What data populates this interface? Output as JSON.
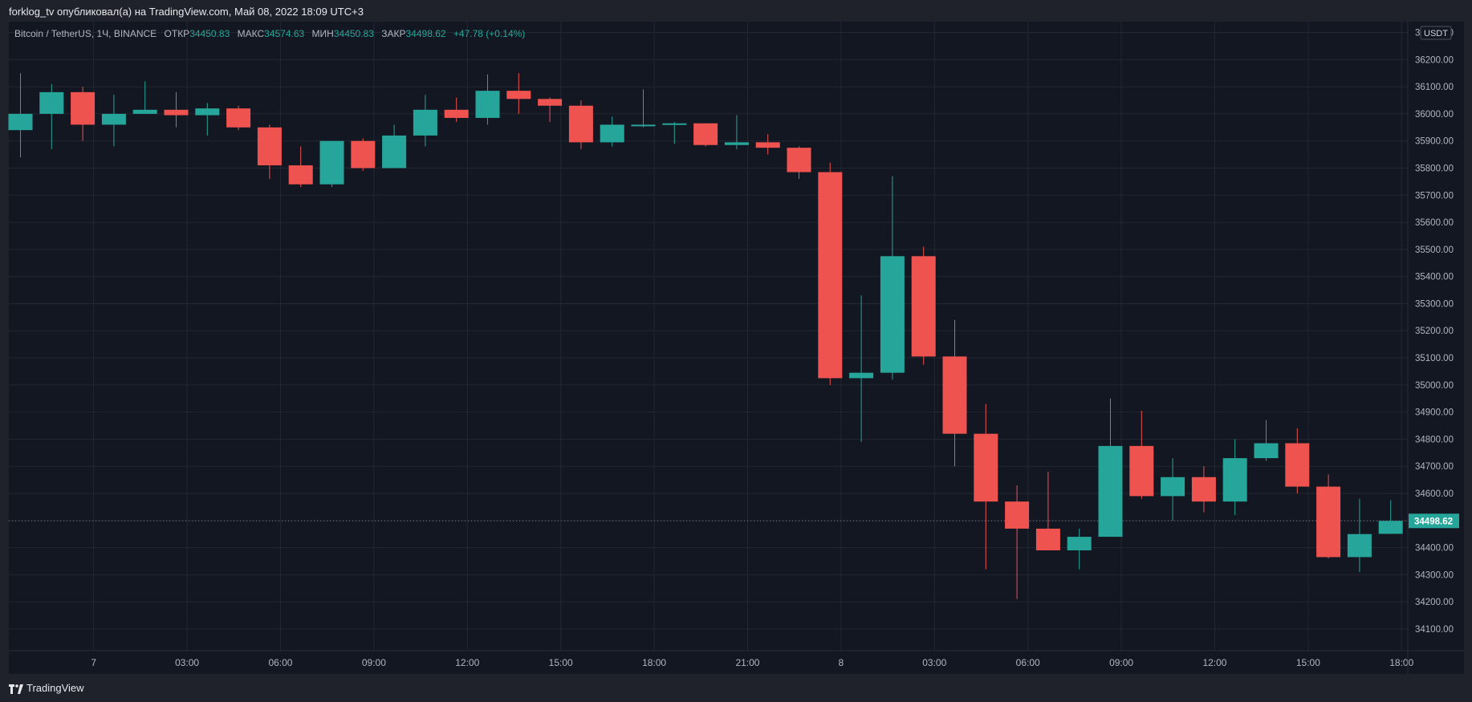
{
  "header": {
    "published_text": "forklog_tv опубликовал(а) на TradingView.com, Май 08, 2022 18:09 UTC+3"
  },
  "legend": {
    "symbol": "Bitcoin / TetherUS, 1Ч, BINANCE",
    "open_label": "ОТКР",
    "open_value": "34450.83",
    "high_label": "МАКС",
    "high_value": "34574.63",
    "low_label": "МИН",
    "low_value": "34450.83",
    "close_label": "ЗАКР",
    "close_value": "34498.62",
    "change": "+47.78 (+0.14%)"
  },
  "footer": {
    "brand": "TradingView"
  },
  "colors": {
    "up": "#26a69a",
    "down": "#ef5350",
    "background": "#131722",
    "grid": "#242733",
    "axis_text": "#b2b5be"
  },
  "chart_data": {
    "type": "candlestick",
    "currency_label": "USDT",
    "last_price_label": "34498.62",
    "last_price": 34498.62,
    "ylim": [
      34020,
      36340
    ],
    "y_ticks": [
      34100,
      34200,
      34300,
      34400,
      34500,
      34600,
      34700,
      34800,
      34900,
      35000,
      35100,
      35200,
      35300,
      35400,
      35500,
      35600,
      35700,
      35800,
      35900,
      36000,
      36100,
      36200,
      36300
    ],
    "x_ticks": [
      {
        "index": 2.35,
        "label": "7"
      },
      {
        "index": 5.35,
        "label": "03:00"
      },
      {
        "index": 8.35,
        "label": "06:00"
      },
      {
        "index": 11.35,
        "label": "09:00"
      },
      {
        "index": 14.35,
        "label": "12:00"
      },
      {
        "index": 17.35,
        "label": "15:00"
      },
      {
        "index": 20.35,
        "label": "18:00"
      },
      {
        "index": 23.35,
        "label": "21:00"
      },
      {
        "index": 26.35,
        "label": "8"
      },
      {
        "index": 29.35,
        "label": "03:00"
      },
      {
        "index": 32.35,
        "label": "06:00"
      },
      {
        "index": 35.35,
        "label": "09:00"
      },
      {
        "index": 38.35,
        "label": "12:00"
      },
      {
        "index": 41.35,
        "label": "15:00"
      },
      {
        "index": 44.35,
        "label": "18:00"
      }
    ],
    "candles": [
      {
        "o": 35940,
        "h": 36150,
        "l": 35840,
        "c": 36000
      },
      {
        "o": 36000,
        "h": 36110,
        "l": 35870,
        "c": 36080
      },
      {
        "o": 36080,
        "h": 36100,
        "l": 35900,
        "c": 35960
      },
      {
        "o": 35960,
        "h": 36070,
        "l": 35880,
        "c": 36000
      },
      {
        "o": 36000,
        "h": 36120,
        "l": 36000,
        "c": 36015
      },
      {
        "o": 36015,
        "h": 36080,
        "l": 35950,
        "c": 35995
      },
      {
        "o": 35995,
        "h": 36040,
        "l": 35920,
        "c": 36020
      },
      {
        "o": 36020,
        "h": 36030,
        "l": 35940,
        "c": 35950
      },
      {
        "o": 35950,
        "h": 35960,
        "l": 35760,
        "c": 35810
      },
      {
        "o": 35810,
        "h": 35880,
        "l": 35730,
        "c": 35740
      },
      {
        "o": 35740,
        "h": 35900,
        "l": 35730,
        "c": 35900
      },
      {
        "o": 35900,
        "h": 35910,
        "l": 35790,
        "c": 35800
      },
      {
        "o": 35800,
        "h": 35960,
        "l": 35800,
        "c": 35920
      },
      {
        "o": 35920,
        "h": 36070,
        "l": 35880,
        "c": 36015
      },
      {
        "o": 36015,
        "h": 36060,
        "l": 35970,
        "c": 35985
      },
      {
        "o": 35985,
        "h": 36145,
        "l": 35960,
        "c": 36085
      },
      {
        "o": 36085,
        "h": 36150,
        "l": 36000,
        "c": 36055
      },
      {
        "o": 36055,
        "h": 36060,
        "l": 35970,
        "c": 36030
      },
      {
        "o": 36030,
        "h": 36050,
        "l": 35870,
        "c": 35895
      },
      {
        "o": 35895,
        "h": 35990,
        "l": 35880,
        "c": 35960
      },
      {
        "o": 35960,
        "h": 36090,
        "l": 35950,
        "c": 35960
      },
      {
        "o": 35960,
        "h": 35970,
        "l": 35890,
        "c": 35965
      },
      {
        "o": 35965,
        "h": 35965,
        "l": 35880,
        "c": 35885
      },
      {
        "o": 35885,
        "h": 35995,
        "l": 35870,
        "c": 35895
      },
      {
        "o": 35895,
        "h": 35925,
        "l": 35850,
        "c": 35875
      },
      {
        "o": 35875,
        "h": 35880,
        "l": 35760,
        "c": 35785
      },
      {
        "o": 35785,
        "h": 35820,
        "l": 35000,
        "c": 35025
      },
      {
        "o": 35025,
        "h": 35330,
        "l": 34790,
        "c": 35045
      },
      {
        "o": 35045,
        "h": 35770,
        "l": 35020,
        "c": 35475
      },
      {
        "o": 35475,
        "h": 35510,
        "l": 35075,
        "c": 35105
      },
      {
        "o": 35105,
        "h": 35240,
        "l": 34700,
        "c": 34820
      },
      {
        "o": 34820,
        "h": 34930,
        "l": 34320,
        "c": 34570
      },
      {
        "o": 34570,
        "h": 34630,
        "l": 34210,
        "c": 34470
      },
      {
        "o": 34470,
        "h": 34680,
        "l": 34390,
        "c": 34390
      },
      {
        "o": 34390,
        "h": 34470,
        "l": 34320,
        "c": 34440
      },
      {
        "o": 34440,
        "h": 34950,
        "l": 34440,
        "c": 34775
      },
      {
        "o": 34775,
        "h": 34905,
        "l": 34580,
        "c": 34590
      },
      {
        "o": 34590,
        "h": 34730,
        "l": 34500,
        "c": 34660
      },
      {
        "o": 34660,
        "h": 34700,
        "l": 34530,
        "c": 34570
      },
      {
        "o": 34570,
        "h": 34800,
        "l": 34520,
        "c": 34730
      },
      {
        "o": 34730,
        "h": 34870,
        "l": 34720,
        "c": 34785
      },
      {
        "o": 34785,
        "h": 34840,
        "l": 34600,
        "c": 34625
      },
      {
        "o": 34625,
        "h": 34670,
        "l": 34360,
        "c": 34365
      },
      {
        "o": 34365,
        "h": 34580,
        "l": 34310,
        "c": 34450
      },
      {
        "o": 34450.83,
        "h": 34574.63,
        "l": 34450.83,
        "c": 34498.62
      }
    ]
  }
}
